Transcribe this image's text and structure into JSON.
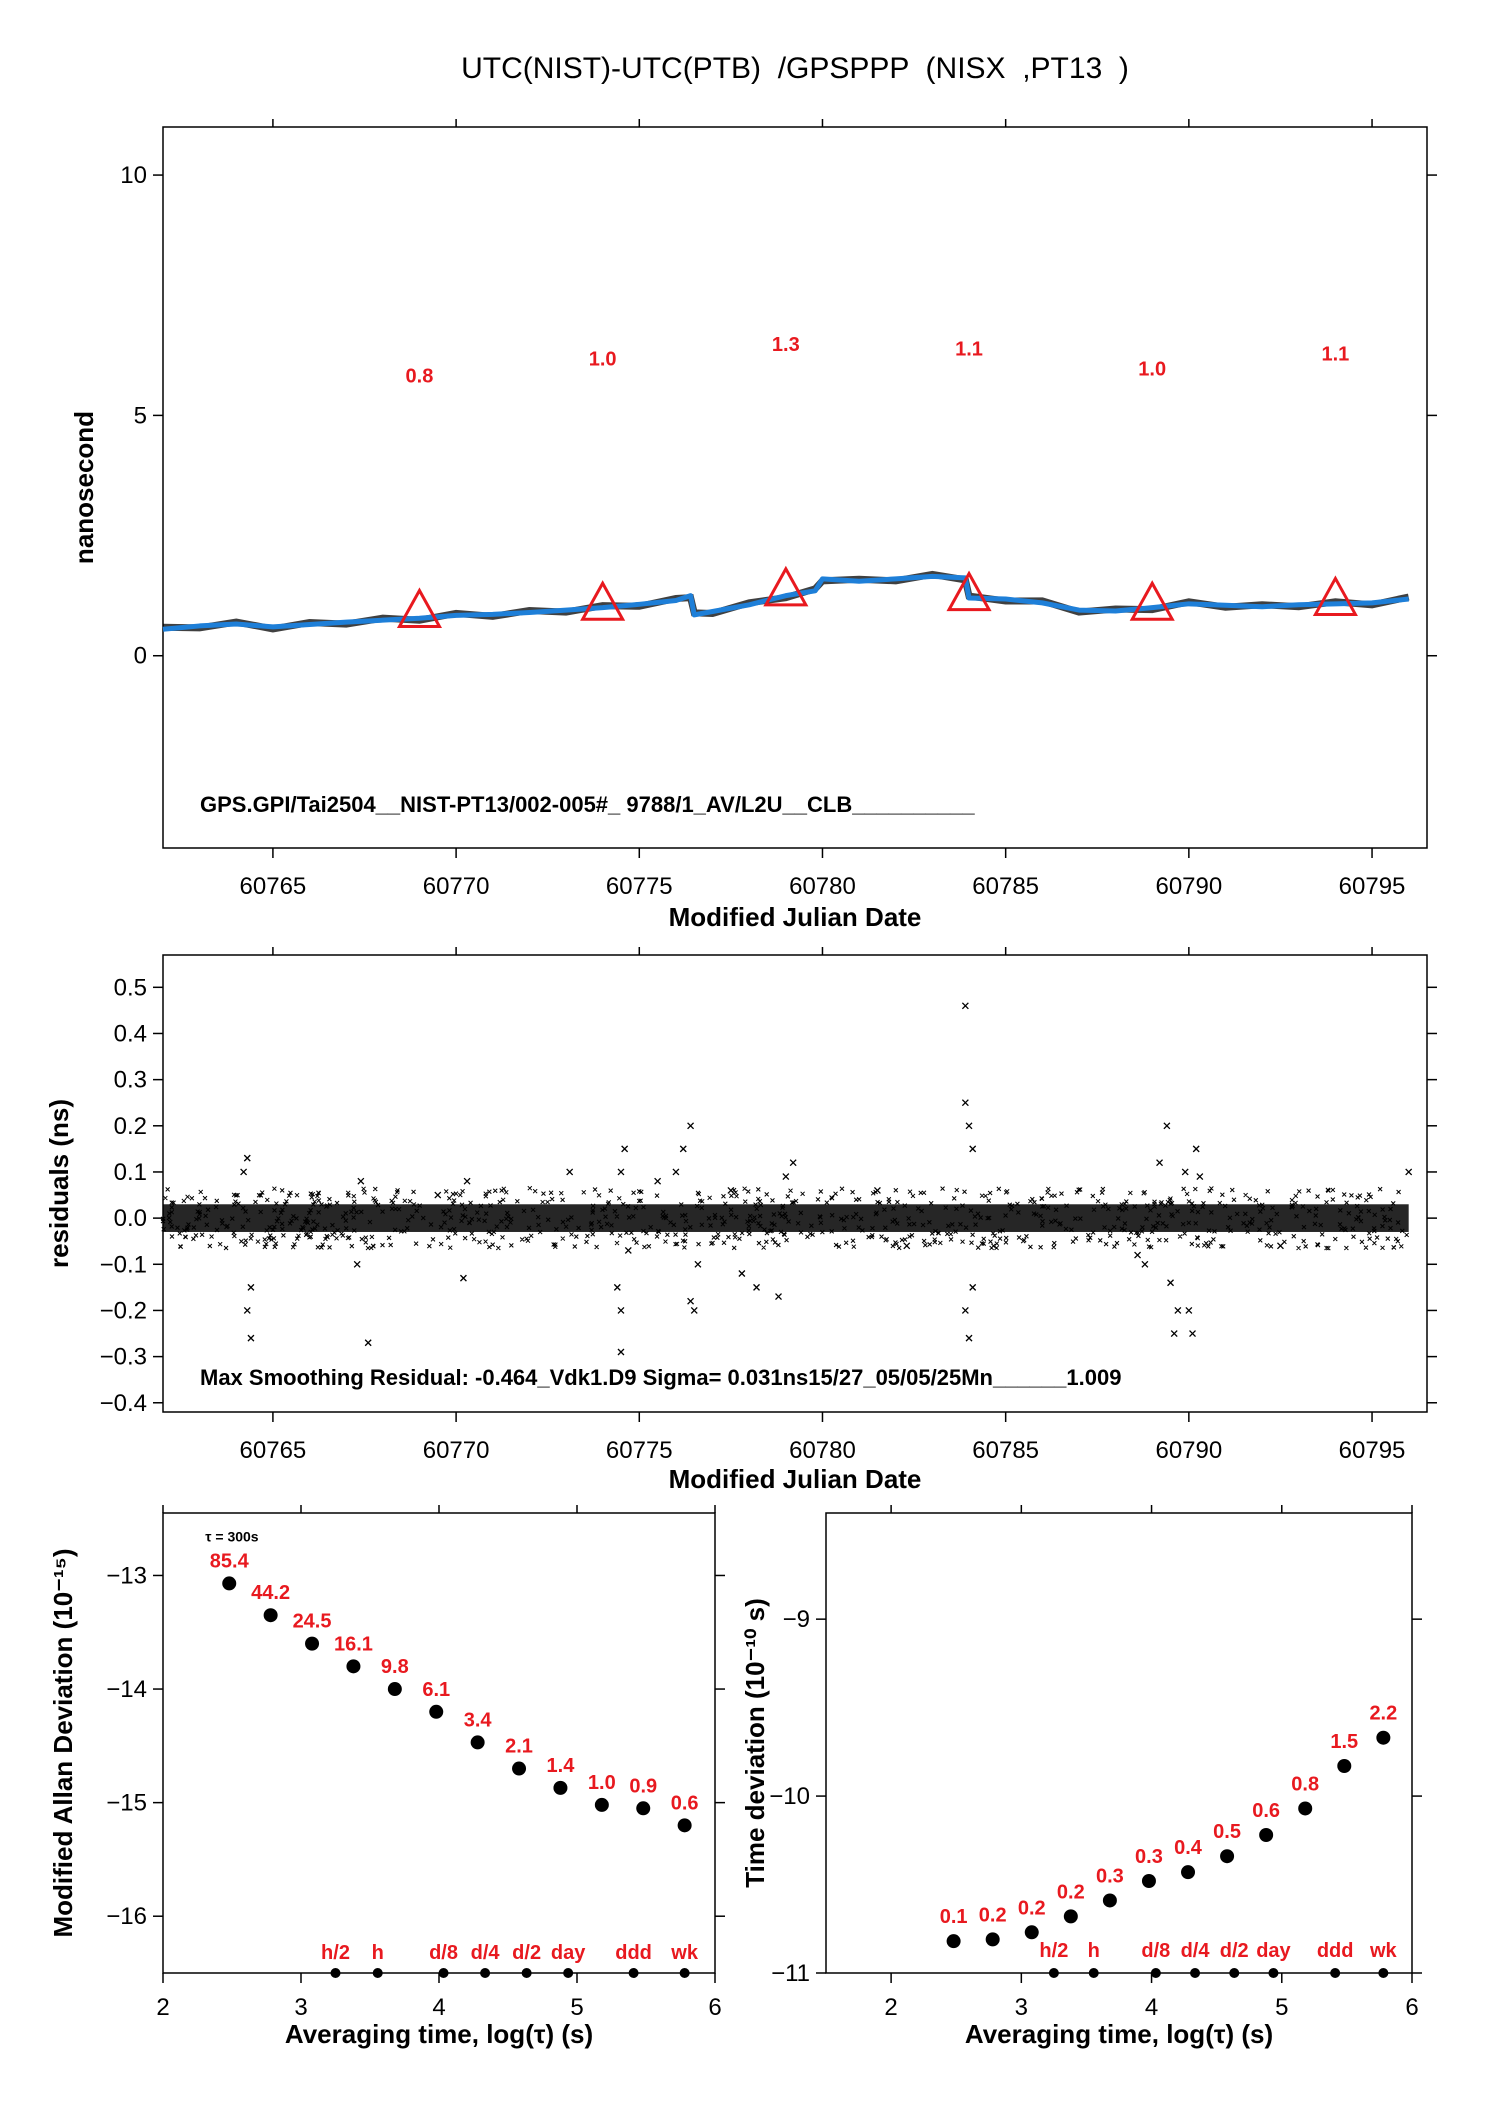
{
  "title": "UTC(NIST)-UTC(PTB)  /GPSPPP  (NISX  ,PT13  )",
  "colors": {
    "trace": "#1e7fd8",
    "markers": "#e8191f",
    "scatter": "#000000"
  },
  "chart_data": [
    {
      "type": "line",
      "panel": "top",
      "xlabel": "Modified Julian Date",
      "ylabel": "nanosecond",
      "xlim": [
        60762,
        60796.5
      ],
      "ylim": [
        -4,
        11
      ],
      "xticks": [
        "60765",
        "60770",
        "60775",
        "60780",
        "60785",
        "60790",
        "60795"
      ],
      "yticks": [
        "0",
        "5",
        "10"
      ],
      "annotation": "GPS.GPI/Tai2504__NIST-PT13/002-005#_  9788/1_AV/L2U__CLB__________",
      "trace_x": [
        60762,
        60763,
        60764,
        60765,
        60766,
        60767,
        60768,
        60769,
        60770,
        60771,
        60772,
        60773,
        60774,
        60775,
        60776,
        60776.4,
        60776.5,
        60777,
        60778,
        60779,
        60779.8,
        60780,
        60781,
        60782,
        60783,
        60783.9,
        60784,
        60785,
        60786,
        60787,
        60788,
        60789,
        60790,
        60791,
        60792,
        60793,
        60794,
        60795,
        60796
      ],
      "trace_y": [
        0.55,
        0.62,
        0.66,
        0.6,
        0.65,
        0.7,
        0.74,
        0.78,
        0.84,
        0.86,
        0.9,
        0.95,
        1.0,
        1.07,
        1.15,
        1.25,
        0.85,
        0.92,
        1.06,
        1.25,
        1.35,
        1.6,
        1.55,
        1.6,
        1.65,
        1.62,
        1.2,
        1.18,
        1.1,
        0.95,
        0.93,
        1.0,
        1.08,
        1.05,
        1.02,
        1.06,
        1.08,
        1.1,
        1.18
      ],
      "markers": [
        {
          "x": 60769,
          "y": 0.9,
          "label": "0.8"
        },
        {
          "x": 60774,
          "y": 1.05,
          "label": "1.0"
        },
        {
          "x": 60779,
          "y": 1.35,
          "label": "1.3"
        },
        {
          "x": 60784,
          "y": 1.25,
          "label": "1.1"
        },
        {
          "x": 60789,
          "y": 1.05,
          "label": "1.0"
        },
        {
          "x": 60794,
          "y": 1.15,
          "label": "1.1"
        }
      ]
    },
    {
      "type": "scatter",
      "panel": "residuals",
      "xlabel": "Modified Julian Date",
      "ylabel": "residuals (ns)",
      "xlim": [
        60762,
        60796.5
      ],
      "ylim": [
        -0.42,
        0.57
      ],
      "xticks": [
        "60765",
        "60770",
        "60775",
        "60780",
        "60785",
        "60790",
        "60795"
      ],
      "yticks": [
        "−0.4",
        "−0.3",
        "−0.2",
        "−0.1",
        "0.0",
        "0.1",
        "0.2",
        "0.3",
        "0.4",
        "0.5"
      ],
      "annotation": "Max Smoothing Residual: -0.464_Vdk1.D9  Sigma= 0.031ns15/27_05/05/25Mn______1.009",
      "sigma_ns": 0.031,
      "outliers": [
        [
          60764.3,
          0.13
        ],
        [
          60764.2,
          0.1
        ],
        [
          60764.4,
          -0.15
        ],
        [
          60764.3,
          -0.2
        ],
        [
          60764.4,
          -0.26
        ],
        [
          60767.3,
          -0.1
        ],
        [
          60767.6,
          -0.27
        ],
        [
          60767.4,
          0.08
        ],
        [
          60769.5,
          0.05
        ],
        [
          60770.2,
          -0.13
        ],
        [
          60770.3,
          0.08
        ],
        [
          60773.1,
          0.1
        ],
        [
          60774.4,
          -0.15
        ],
        [
          60774.5,
          -0.2
        ],
        [
          60774.5,
          -0.29
        ],
        [
          60774.6,
          0.15
        ],
        [
          60774.5,
          0.1
        ],
        [
          60774.7,
          -0.07
        ],
        [
          60775.5,
          0.08
        ],
        [
          60776.0,
          0.1
        ],
        [
          60776.2,
          0.15
        ],
        [
          60776.4,
          0.2
        ],
        [
          60776.5,
          -0.2
        ],
        [
          60776.4,
          -0.18
        ],
        [
          60776.6,
          -0.1
        ],
        [
          60777.5,
          0.06
        ],
        [
          60777.8,
          -0.12
        ],
        [
          60778.2,
          -0.15
        ],
        [
          60778.8,
          -0.17
        ],
        [
          60779.0,
          0.09
        ],
        [
          60779.2,
          0.12
        ],
        [
          60781.5,
          0.06
        ],
        [
          60782.3,
          -0.06
        ],
        [
          60783.9,
          0.46
        ],
        [
          60783.9,
          0.25
        ],
        [
          60784.0,
          0.2
        ],
        [
          60784.1,
          0.15
        ],
        [
          60783.9,
          -0.2
        ],
        [
          60784.0,
          -0.26
        ],
        [
          60784.1,
          -0.15
        ],
        [
          60788.6,
          -0.08
        ],
        [
          60788.8,
          -0.1
        ],
        [
          60789.2,
          0.12
        ],
        [
          60789.4,
          0.2
        ],
        [
          60789.6,
          -0.25
        ],
        [
          60789.7,
          -0.2
        ],
        [
          60789.5,
          -0.14
        ],
        [
          60790.0,
          -0.2
        ],
        [
          60790.1,
          -0.25
        ],
        [
          60790.2,
          0.15
        ],
        [
          60789.9,
          0.1
        ],
        [
          60790.3,
          0.09
        ],
        [
          60792.5,
          -0.06
        ],
        [
          60796.0,
          0.1
        ]
      ]
    },
    {
      "type": "scatter",
      "panel": "allan",
      "xlabel": "Averaging time, log(τ) (s)",
      "ylabel": "Modified Allan Deviation (10⁻¹⁵)",
      "xlim": [
        2,
        6
      ],
      "ylim": [
        -16.5,
        -12.45
      ],
      "xticks": [
        "2",
        "3",
        "4",
        "5",
        "6"
      ],
      "yticks": [
        "−13",
        "−14",
        "−15",
        "−16"
      ],
      "tau0_label": "τ = 300s",
      "x": [
        2.48,
        2.78,
        3.08,
        3.38,
        3.68,
        3.98,
        4.28,
        4.58,
        4.88,
        5.18,
        5.48,
        5.78
      ],
      "y": [
        -13.07,
        -13.35,
        -13.6,
        -13.8,
        -14.0,
        -14.2,
        -14.47,
        -14.7,
        -14.87,
        -15.02,
        -15.05,
        -15.2
      ],
      "value_labels": [
        "85.4",
        "44.2",
        "24.5",
        "16.1",
        "9.8",
        "6.1",
        "3.4",
        "2.1",
        "1.4",
        "1.0",
        "0.9",
        "0.6"
      ],
      "interval_marks": [
        {
          "x": 3.25,
          "label": "h/2"
        },
        {
          "x": 3.556,
          "label": "h"
        },
        {
          "x": 4.033,
          "label": "d/8"
        },
        {
          "x": 4.334,
          "label": "d/4"
        },
        {
          "x": 4.635,
          "label": "d/2"
        },
        {
          "x": 4.936,
          "label": "day"
        },
        {
          "x": 5.41,
          "label": "ddd"
        },
        {
          "x": 5.78,
          "label": "wk"
        }
      ]
    },
    {
      "type": "scatter",
      "panel": "tdev",
      "xlabel": "Averaging time, log(τ) (s)",
      "ylabel": "Time deviation (10⁻¹⁰ s)",
      "xlim": [
        1.5,
        6
      ],
      "ylim": [
        -11,
        -8.4
      ],
      "xticks": [
        "2",
        "3",
        "4",
        "5",
        "6"
      ],
      "yticks": [
        "−9",
        "−10",
        "−11"
      ],
      "x": [
        2.48,
        2.78,
        3.08,
        3.38,
        3.68,
        3.98,
        4.28,
        4.58,
        4.88,
        5.18,
        5.48,
        5.78
      ],
      "y": [
        -10.82,
        -10.81,
        -10.77,
        -10.68,
        -10.59,
        -10.48,
        -10.43,
        -10.34,
        -10.22,
        -10.07,
        -9.83,
        -9.67
      ],
      "value_labels": [
        "0.1",
        "0.2",
        "0.2",
        "0.2",
        "0.3",
        "0.3",
        "0.4",
        "0.5",
        "0.6",
        "0.8",
        "1.5",
        "2.2"
      ],
      "interval_marks": [
        {
          "x": 3.25,
          "label": "h/2"
        },
        {
          "x": 3.556,
          "label": "h"
        },
        {
          "x": 4.033,
          "label": "d/8"
        },
        {
          "x": 4.334,
          "label": "d/4"
        },
        {
          "x": 4.635,
          "label": "d/2"
        },
        {
          "x": 4.936,
          "label": "day"
        },
        {
          "x": 5.41,
          "label": "ddd"
        },
        {
          "x": 5.78,
          "label": "wk"
        }
      ]
    }
  ]
}
